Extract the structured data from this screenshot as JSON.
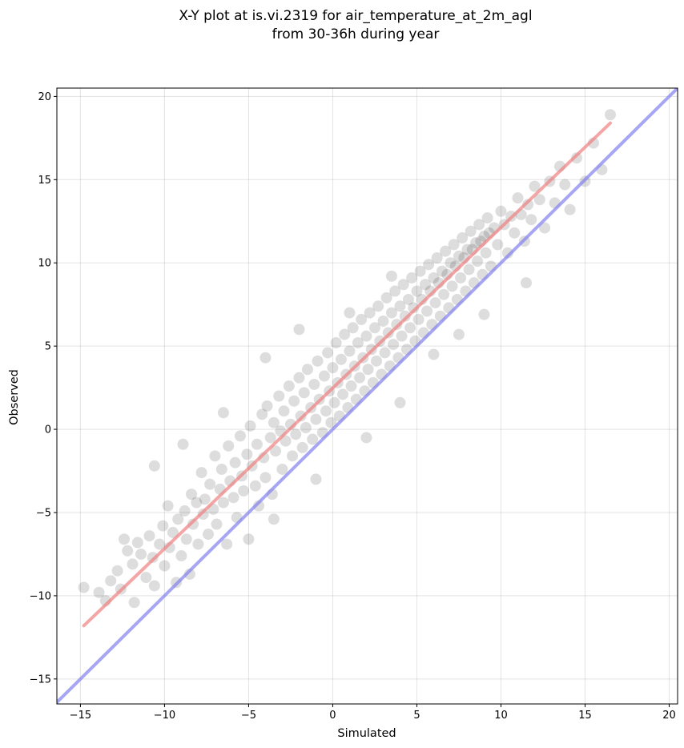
{
  "chart_data": {
    "type": "scatter",
    "title_line1": "X-Y plot at is.vi.2319 for air_temperature_at_2m_agl",
    "title_line2": "from 30-36h during year",
    "xlabel": "Simulated",
    "ylabel": "Observed",
    "xlim": [
      -16.4,
      20.5
    ],
    "ylim": [
      -16.5,
      20.5
    ],
    "xticks": [
      -15,
      -10,
      -5,
      0,
      5,
      10,
      15,
      20
    ],
    "yticks": [
      -15,
      -10,
      -5,
      0,
      5,
      10,
      15,
      20
    ],
    "xtick_labels": [
      "−15",
      "−10",
      "−5",
      "0",
      "5",
      "10",
      "15",
      "20"
    ],
    "ytick_labels": [
      "−15",
      "−10",
      "−5",
      "0",
      "5",
      "10",
      "15",
      "20"
    ],
    "grid": true,
    "legend": "none",
    "point_color": "#000000",
    "point_alpha": 0.06,
    "series": [
      {
        "kind": "points",
        "points": [
          [
            -14.8,
            -9.5
          ],
          [
            -13.9,
            -9.8
          ],
          [
            -13.5,
            -10.3
          ],
          [
            -13.2,
            -9.1
          ],
          [
            -12.8,
            -8.5
          ],
          [
            -12.6,
            -9.6
          ],
          [
            -12.4,
            -6.6
          ],
          [
            -12.2,
            -7.3
          ],
          [
            -11.9,
            -8.1
          ],
          [
            -11.8,
            -10.4
          ],
          [
            -11.6,
            -6.8
          ],
          [
            -11.4,
            -7.5
          ],
          [
            -11.1,
            -8.9
          ],
          [
            -10.9,
            -6.4
          ],
          [
            -10.7,
            -7.7
          ],
          [
            -10.6,
            -9.4
          ],
          [
            -10.3,
            -6.9
          ],
          [
            -10.1,
            -5.8
          ],
          [
            -10.0,
            -8.2
          ],
          [
            -9.8,
            -4.6
          ],
          [
            -9.7,
            -7.1
          ],
          [
            -9.5,
            -6.2
          ],
          [
            -9.3,
            -9.2
          ],
          [
            -9.2,
            -5.4
          ],
          [
            -9.0,
            -7.6
          ],
          [
            -8.8,
            -4.9
          ],
          [
            -8.7,
            -6.6
          ],
          [
            -8.5,
            -8.7
          ],
          [
            -8.4,
            -3.9
          ],
          [
            -8.3,
            -5.7
          ],
          [
            -8.1,
            -4.4
          ],
          [
            -8.0,
            -6.9
          ],
          [
            -7.8,
            -2.6
          ],
          [
            -7.7,
            -5.1
          ],
          [
            -7.6,
            -4.2
          ],
          [
            -7.4,
            -6.3
          ],
          [
            -7.3,
            -3.3
          ],
          [
            -7.1,
            -4.8
          ],
          [
            -7.0,
            -1.6
          ],
          [
            -6.9,
            -5.7
          ],
          [
            -6.7,
            -3.6
          ],
          [
            -6.6,
            -2.4
          ],
          [
            -6.5,
            -4.4
          ],
          [
            -6.3,
            -6.9
          ],
          [
            -6.2,
            -1.0
          ],
          [
            -6.1,
            -3.1
          ],
          [
            -5.9,
            -4.1
          ],
          [
            -5.8,
            -2.0
          ],
          [
            -5.7,
            -5.3
          ],
          [
            -5.5,
            -0.4
          ],
          [
            -5.4,
            -2.8
          ],
          [
            -5.3,
            -3.7
          ],
          [
            -5.1,
            -1.5
          ],
          [
            -5.0,
            -6.6
          ],
          [
            -4.9,
            0.2
          ],
          [
            -4.8,
            -2.2
          ],
          [
            -4.6,
            -3.4
          ],
          [
            -4.5,
            -0.9
          ],
          [
            -4.4,
            -4.6
          ],
          [
            -4.2,
            0.9
          ],
          [
            -4.1,
            -1.7
          ],
          [
            -4.0,
            -2.9
          ],
          [
            -3.9,
            1.4
          ],
          [
            -3.7,
            -0.5
          ],
          [
            -3.6,
            -3.9
          ],
          [
            -3.5,
            0.4
          ],
          [
            -3.4,
            -1.3
          ],
          [
            -3.2,
            2.0
          ],
          [
            -3.1,
            -0.1
          ],
          [
            -3.0,
            -2.4
          ],
          [
            -2.9,
            1.1
          ],
          [
            -2.8,
            -0.7
          ],
          [
            -2.6,
            2.6
          ],
          [
            -2.5,
            0.3
          ],
          [
            -2.4,
            -1.6
          ],
          [
            -2.3,
            1.7
          ],
          [
            -2.2,
            -0.3
          ],
          [
            -2.0,
            3.1
          ],
          [
            -1.9,
            0.8
          ],
          [
            -1.8,
            -1.1
          ],
          [
            -1.7,
            2.2
          ],
          [
            -1.6,
            0.1
          ],
          [
            -1.5,
            3.6
          ],
          [
            -1.3,
            1.3
          ],
          [
            -1.2,
            -0.6
          ],
          [
            -1.1,
            2.7
          ],
          [
            -1.0,
            0.6
          ],
          [
            -0.9,
            4.1
          ],
          [
            -0.8,
            1.8
          ],
          [
            -0.6,
            -0.2
          ],
          [
            -0.5,
            3.2
          ],
          [
            -0.4,
            1.1
          ],
          [
            -0.3,
            4.6
          ],
          [
            -0.2,
            2.3
          ],
          [
            -0.1,
            0.4
          ],
          [
            0.0,
            3.7
          ],
          [
            0.1,
            1.6
          ],
          [
            0.2,
            5.2
          ],
          [
            0.3,
            2.8
          ],
          [
            0.4,
            0.8
          ],
          [
            0.5,
            4.2
          ],
          [
            0.6,
            2.1
          ],
          [
            0.7,
            5.7
          ],
          [
            0.8,
            3.3
          ],
          [
            0.9,
            1.3
          ],
          [
            1.0,
            4.7
          ],
          [
            1.1,
            2.6
          ],
          [
            1.2,
            6.1
          ],
          [
            1.3,
            3.8
          ],
          [
            1.4,
            1.8
          ],
          [
            1.5,
            5.2
          ],
          [
            1.6,
            3.1
          ],
          [
            1.7,
            6.6
          ],
          [
            1.8,
            4.3
          ],
          [
            1.9,
            2.3
          ],
          [
            2.0,
            5.6
          ],
          [
            2.1,
            3.6
          ],
          [
            2.2,
            7.0
          ],
          [
            2.3,
            4.8
          ],
          [
            2.4,
            2.8
          ],
          [
            2.5,
            6.1
          ],
          [
            2.6,
            4.1
          ],
          [
            2.7,
            7.4
          ],
          [
            2.8,
            5.3
          ],
          [
            2.9,
            3.3
          ],
          [
            3.0,
            6.5
          ],
          [
            3.1,
            4.6
          ],
          [
            3.2,
            7.9
          ],
          [
            3.3,
            5.8
          ],
          [
            3.4,
            3.8
          ],
          [
            3.5,
            7.0
          ],
          [
            3.6,
            5.1
          ],
          [
            3.7,
            8.3
          ],
          [
            3.8,
            6.3
          ],
          [
            3.9,
            4.3
          ],
          [
            4.0,
            7.4
          ],
          [
            4.1,
            5.6
          ],
          [
            4.2,
            8.7
          ],
          [
            4.3,
            6.8
          ],
          [
            4.4,
            4.8
          ],
          [
            4.5,
            7.8
          ],
          [
            4.6,
            6.1
          ],
          [
            4.7,
            9.1
          ],
          [
            4.8,
            7.3
          ],
          [
            4.9,
            5.3
          ],
          [
            5.0,
            8.3
          ],
          [
            5.1,
            6.6
          ],
          [
            5.2,
            9.5
          ],
          [
            5.3,
            7.8
          ],
          [
            5.4,
            5.8
          ],
          [
            5.5,
            8.7
          ],
          [
            5.6,
            7.1
          ],
          [
            5.7,
            9.9
          ],
          [
            5.8,
            8.3
          ],
          [
            5.9,
            6.3
          ],
          [
            6.0,
            9.1
          ],
          [
            6.1,
            7.6
          ],
          [
            6.2,
            10.3
          ],
          [
            6.3,
            8.8
          ],
          [
            6.4,
            6.8
          ],
          [
            6.5,
            9.5
          ],
          [
            6.6,
            8.1
          ],
          [
            6.7,
            10.7
          ],
          [
            6.8,
            9.3
          ],
          [
            6.9,
            7.3
          ],
          [
            7.0,
            10.0
          ],
          [
            7.1,
            8.6
          ],
          [
            7.2,
            11.1
          ],
          [
            7.3,
            9.8
          ],
          [
            7.4,
            7.8
          ],
          [
            7.5,
            10.4
          ],
          [
            7.6,
            9.1
          ],
          [
            7.7,
            11.5
          ],
          [
            7.8,
            10.3
          ],
          [
            7.9,
            8.3
          ],
          [
            8.0,
            10.8
          ],
          [
            8.1,
            9.6
          ],
          [
            8.2,
            11.9
          ],
          [
            8.3,
            10.8
          ],
          [
            8.4,
            8.8
          ],
          [
            8.5,
            11.2
          ],
          [
            8.6,
            10.1
          ],
          [
            8.7,
            12.3
          ],
          [
            8.8,
            11.3
          ],
          [
            8.9,
            9.3
          ],
          [
            9.0,
            11.6
          ],
          [
            9.1,
            10.6
          ],
          [
            9.2,
            12.7
          ],
          [
            9.3,
            11.8
          ],
          [
            9.4,
            9.8
          ],
          [
            9.6,
            12.1
          ],
          [
            9.8,
            11.1
          ],
          [
            10.0,
            13.1
          ],
          [
            10.2,
            12.3
          ],
          [
            10.4,
            10.6
          ],
          [
            10.6,
            12.8
          ],
          [
            10.8,
            11.8
          ],
          [
            11.0,
            13.9
          ],
          [
            11.2,
            12.9
          ],
          [
            11.4,
            11.3
          ],
          [
            11.6,
            13.5
          ],
          [
            11.8,
            12.6
          ],
          [
            12.0,
            14.6
          ],
          [
            12.3,
            13.8
          ],
          [
            12.6,
            12.1
          ],
          [
            12.9,
            14.9
          ],
          [
            13.2,
            13.6
          ],
          [
            13.5,
            15.8
          ],
          [
            13.8,
            14.7
          ],
          [
            14.1,
            13.2
          ],
          [
            14.5,
            16.3
          ],
          [
            15.0,
            14.9
          ],
          [
            15.5,
            17.2
          ],
          [
            16.0,
            15.6
          ],
          [
            16.5,
            18.9
          ],
          [
            -6.5,
            1.0
          ],
          [
            -4.0,
            4.3
          ],
          [
            -2.0,
            6.0
          ],
          [
            1.0,
            7.0
          ],
          [
            3.5,
            9.2
          ],
          [
            -10.6,
            -2.2
          ],
          [
            -8.9,
            -0.9
          ],
          [
            6.0,
            4.5
          ],
          [
            7.5,
            5.7
          ],
          [
            9.0,
            6.9
          ],
          [
            2.0,
            -0.5
          ],
          [
            4.0,
            1.6
          ],
          [
            -1.0,
            -3.0
          ],
          [
            -3.5,
            -5.4
          ],
          [
            11.5,
            8.8
          ]
        ]
      },
      {
        "kind": "line",
        "color": "#f08080",
        "points": [
          [
            -14.8,
            -11.8
          ],
          [
            16.5,
            18.4
          ]
        ]
      },
      {
        "kind": "line",
        "color": "#8080f0",
        "points": [
          [
            -16.4,
            -16.4
          ],
          [
            20.5,
            20.5
          ]
        ]
      }
    ]
  }
}
